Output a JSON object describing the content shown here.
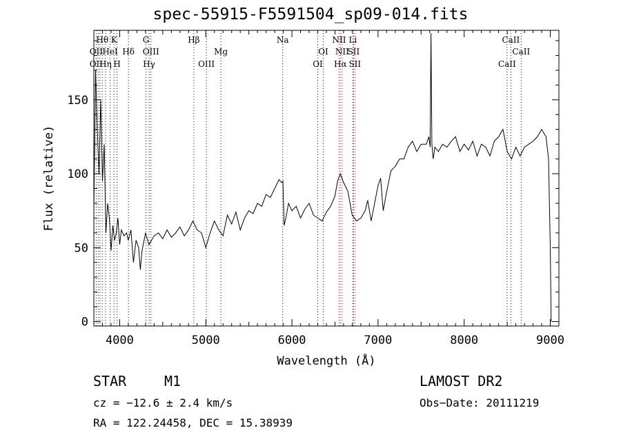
{
  "chart_data": {
    "type": "line",
    "title": "spec-55915-F5591504_sp09-014.fits",
    "xlabel": "Wavelength (Å)",
    "ylabel": "Flux (relative)",
    "xlim": [
      3700,
      9100
    ],
    "ylim": [
      -3,
      197
    ],
    "xticks": [
      4000,
      5000,
      6000,
      7000,
      8000,
      9000
    ],
    "yticks": [
      0,
      50,
      100,
      150
    ],
    "grid": false,
    "legend": "none",
    "series": [
      {
        "x": [
          3700,
          3720,
          3740,
          3760,
          3780,
          3800,
          3820,
          3840,
          3860,
          3880,
          3900,
          3920,
          3940,
          3960,
          3980,
          4000,
          4020,
          4050,
          4080,
          4100,
          4130,
          4160,
          4190,
          4220,
          4240,
          4260,
          4300,
          4340,
          4400,
          4450,
          4500,
          4550,
          4600,
          4650,
          4700,
          4750,
          4800,
          4850,
          4900,
          4950,
          5000,
          5050,
          5100,
          5150,
          5200,
          5250,
          5300,
          5350,
          5400,
          5450,
          5500,
          5550,
          5600,
          5650,
          5700,
          5750,
          5800,
          5850,
          5880,
          5895,
          5910,
          5930,
          5960,
          6000,
          6050,
          6100,
          6150,
          6200,
          6250,
          6300,
          6350,
          6400,
          6450,
          6500,
          6530,
          6563,
          6600,
          6650,
          6700,
          6750,
          6800,
          6850,
          6880,
          6920,
          6960,
          7000,
          7030,
          7060,
          7100,
          7150,
          7200,
          7250,
          7300,
          7350,
          7400,
          7450,
          7500,
          7560,
          7590,
          7605,
          7615,
          7625,
          7640,
          7660,
          7700,
          7750,
          7800,
          7850,
          7900,
          7950,
          8000,
          8050,
          8100,
          8150,
          8200,
          8250,
          8300,
          8350,
          8400,
          8450,
          8500,
          8550,
          8600,
          8650,
          8700,
          8750,
          8800,
          8850,
          8900,
          8950,
          8980,
          9000,
          9010
        ],
        "y": [
          75,
          170,
          130,
          100,
          150,
          95,
          120,
          60,
          80,
          70,
          48,
          65,
          55,
          60,
          70,
          52,
          62,
          58,
          60,
          55,
          62,
          40,
          55,
          50,
          35,
          48,
          60,
          52,
          58,
          60,
          56,
          62,
          57,
          60,
          64,
          58,
          62,
          68,
          62,
          60,
          50,
          60,
          68,
          62,
          58,
          72,
          66,
          74,
          62,
          70,
          75,
          73,
          80,
          78,
          86,
          84,
          90,
          96,
          94,
          95,
          65,
          70,
          80,
          75,
          78,
          70,
          76,
          80,
          72,
          70,
          68,
          74,
          78,
          85,
          95,
          100,
          94,
          88,
          72,
          68,
          70,
          75,
          82,
          68,
          80,
          92,
          97,
          75,
          88,
          102,
          105,
          110,
          110,
          118,
          122,
          115,
          120,
          120,
          125,
          118,
          195,
          120,
          110,
          118,
          115,
          120,
          118,
          122,
          125,
          115,
          120,
          116,
          122,
          112,
          120,
          118,
          112,
          122,
          125,
          130,
          115,
          110,
          118,
          112,
          118,
          120,
          122,
          125,
          130,
          125,
          110,
          50,
          0
        ]
      }
    ],
    "lines_labels": [
      {
        "name": "Hθ",
        "wave": 3798,
        "row": 1
      },
      {
        "name": "OII",
        "wave": 3727,
        "row": 2
      },
      {
        "name": "OII",
        "wave": 3727,
        "row": 3
      },
      {
        "name": "K",
        "wave": 3934,
        "row": 1
      },
      {
        "name": "HeI",
        "wave": 3889,
        "row": 2
      },
      {
        "name": "Hη",
        "wave": 3835,
        "row": 3
      },
      {
        "name": "H",
        "wave": 3969,
        "row": 3
      },
      {
        "name": "Hδ",
        "wave": 4102,
        "row": 2
      },
      {
        "name": "G",
        "wave": 4305,
        "row": 1
      },
      {
        "name": "OIII",
        "wave": 4363,
        "row": 2
      },
      {
        "name": "Hγ",
        "wave": 4341,
        "row": 3
      },
      {
        "name": "Hβ",
        "wave": 4861,
        "row": 1
      },
      {
        "name": "OIII",
        "wave": 5007,
        "row": 3
      },
      {
        "name": "Mg",
        "wave": 5175,
        "row": 2
      },
      {
        "name": "Na",
        "wave": 5893,
        "row": 1
      },
      {
        "name": "OI",
        "wave": 6364,
        "row": 2
      },
      {
        "name": "OI",
        "wave": 6300,
        "row": 3
      },
      {
        "name": "NII",
        "wave": 6548,
        "row": 1
      },
      {
        "name": "Li",
        "wave": 6708,
        "row": 1
      },
      {
        "name": "NII",
        "wave": 6583,
        "row": 2
      },
      {
        "name": "SII",
        "wave": 6716,
        "row": 2
      },
      {
        "name": "Hα",
        "wave": 6563,
        "row": 3
      },
      {
        "name": "SII",
        "wave": 6731,
        "row": 3
      },
      {
        "name": "CaII",
        "wave": 8542,
        "row": 1
      },
      {
        "name": "CaII",
        "wave": 8662,
        "row": 2
      },
      {
        "name": "CaII",
        "wave": 8498,
        "row": 3
      }
    ],
    "marker_lines": [
      3727,
      3750,
      3771,
      3798,
      3835,
      3889,
      3934,
      3969,
      4102,
      4305,
      4341,
      4363,
      4861,
      5007,
      5175,
      5893,
      6300,
      6364,
      6548,
      6563,
      6583,
      6708,
      6716,
      6731,
      8498,
      8542,
      8662
    ]
  },
  "info": {
    "object_class": "STAR",
    "subclass": "M1",
    "survey": "LAMOST DR2",
    "cz": "cz = −12.6 ± 2.4 km/s",
    "obs_date": "Obs−Date: 20111219",
    "coords": "RA = 122.24458, DEC =  15.38939"
  },
  "colors": {
    "line_red": "#cc0000",
    "line_default": "#000000"
  }
}
